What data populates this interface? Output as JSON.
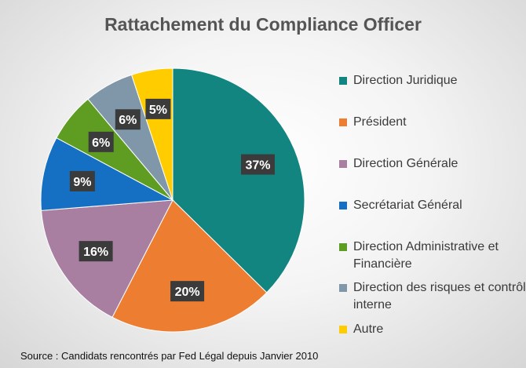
{
  "chart_data": {
    "type": "pie",
    "title": "Rattachement du Compliance Officer",
    "categories": [
      "Direction Juridique",
      "Président",
      "Direction Générale",
      "Secrétariat Général",
      "Direction Administrative et Financière",
      "Direction des risques et contrôle interne",
      "Autre"
    ],
    "values": [
      37,
      20,
      16,
      9,
      6,
      6,
      5
    ],
    "labels": [
      "37%",
      "20%",
      "16%",
      "9%",
      "6%",
      "6%",
      "5%"
    ],
    "colors": [
      "#138580",
      "#ED7D31",
      "#A87FA0",
      "#1570C3",
      "#5E9D22",
      "#7F97A8",
      "#FFCC00"
    ],
    "legend_position": "right",
    "source": "Source : Candidats rencontrés par Fed Légal depuis Janvier 2010"
  }
}
